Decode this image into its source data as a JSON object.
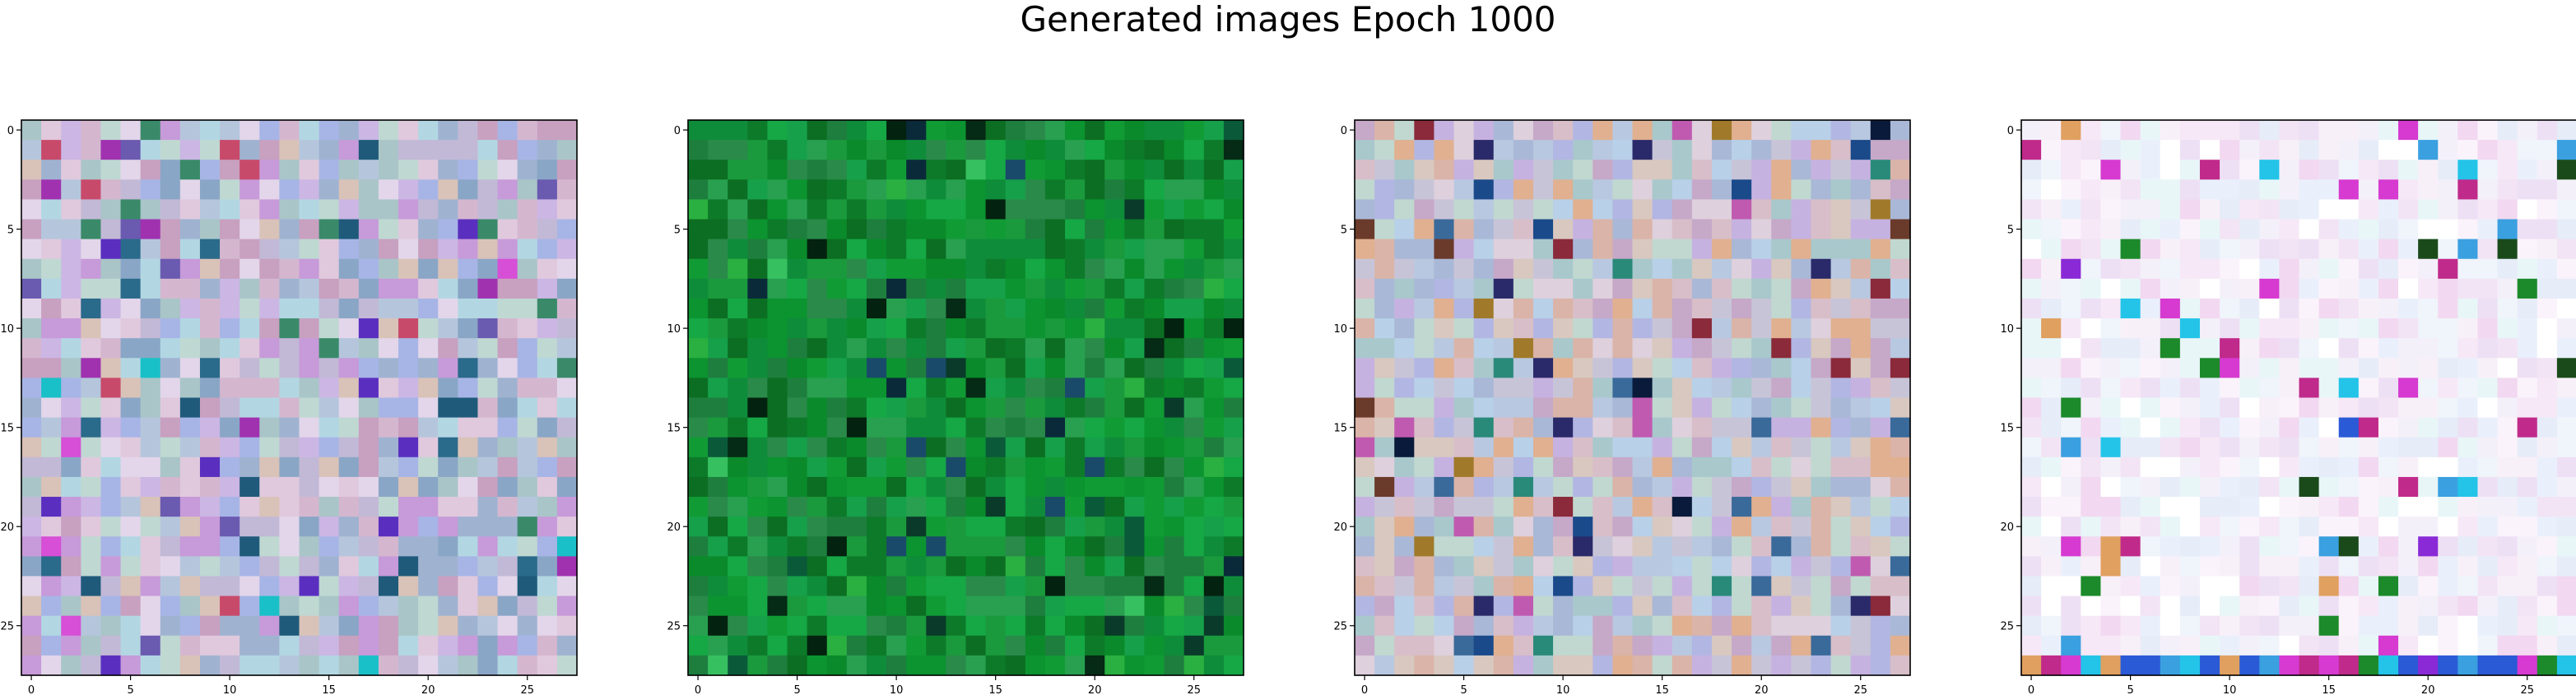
{
  "figure": {
    "title": "Generated images Epoch 1000"
  },
  "panels": [
    {
      "name": "generated-image-1",
      "palette": [
        "#c2b9d6",
        "#b5c6dc",
        "#d4b7cf",
        "#a9c5c8",
        "#cbb6e4",
        "#e0c9dd",
        "#a7b5e6",
        "#bfd8d2",
        "#d9c2b8",
        "#9fb3d1",
        "#c79ad9",
        "#e3d6ea",
        "#8aa6c6",
        "#b2d7e3",
        "#c8a0c0"
      ],
      "accents": [
        "#5a2fbf",
        "#d64fd6",
        "#1f5a7a",
        "#3a8a6a",
        "#a032b0",
        "#c84a6a",
        "#2a6a8a",
        "#6a5ab0",
        "#1ac0c8"
      ]
    },
    {
      "name": "generated-image-2",
      "palette": [
        "#0a8a2a",
        "#119b35",
        "#0d7a2a",
        "#1a9a3c",
        "#15a845",
        "#0f8c3a",
        "#2a8a4a",
        "#0b9430",
        "#1e7e3e",
        "#16a04a",
        "#0c6e22",
        "#28a050"
      ],
      "accents": [
        "#03220f",
        "#0a3a2a",
        "#1a4a6a",
        "#052a15",
        "#0a2a3a",
        "#2ab040",
        "#0a5a3a",
        "#37c060"
      ]
    },
    {
      "name": "generated-image-3",
      "palette": [
        "#c8c4d8",
        "#b8c8e0",
        "#d8bec8",
        "#a8c8cc",
        "#c6b2e0",
        "#d8c8c0",
        "#b2b6e2",
        "#c0d8d0",
        "#dab4a8",
        "#a9b8d6",
        "#c6a8c8",
        "#ded0dc",
        "#e0b090",
        "#b8d0e8"
      ],
      "accents": [
        "#2a2a6a",
        "#8a2a3a",
        "#1a4a8a",
        "#a07a2a",
        "#3a6a9a",
        "#0a1a3a",
        "#c05ab0",
        "#6a3a2a",
        "#2a8a7a"
      ]
    },
    {
      "name": "generated-image-4",
      "palette": [
        "#f4f0fa",
        "#eaf0fb",
        "#f6e8f6",
        "#f0f4fb",
        "#eee0f4",
        "#fbf3fb",
        "#e6ecf8",
        "#f2e4f4",
        "#f8f0f8",
        "#e8f6f8",
        "#f2d8f0",
        "#ffffff"
      ],
      "accents": [
        "#2a5ad6",
        "#d63ad0",
        "#23c4e8",
        "#8a2ad6",
        "#1a4a1a",
        "#e0a060",
        "#1c8a2a",
        "#c02a8a",
        "#3aa0e0"
      ]
    }
  ],
  "axes": {
    "x_ticks": [
      "0",
      "5",
      "10",
      "15",
      "20",
      "25"
    ],
    "y_ticks": [
      "0",
      "5",
      "10",
      "15",
      "20",
      "25"
    ]
  }
}
